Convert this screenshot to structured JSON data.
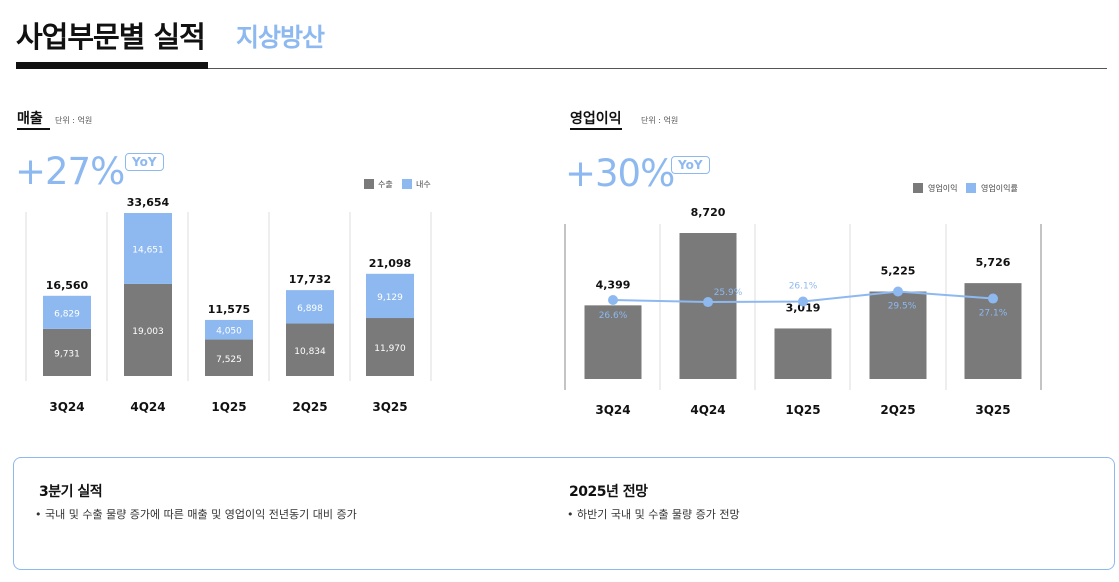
{
  "header": {
    "title": "사업부문별 실적",
    "subtitle": "지상방산"
  },
  "colors": {
    "accent": "#8db9f0",
    "bar_gray": "#7a7a7a",
    "bar_blue": "#8db9f0",
    "line_blue": "#8db9f0"
  },
  "sales": {
    "title": "매출",
    "unit": "단위 : 억원",
    "growth": "+27%",
    "badge": "YoY"
  },
  "op": {
    "title": "영업이익",
    "unit": "단위 : 억원",
    "growth": "+30%",
    "badge": "YoY"
  },
  "chart_data": [
    {
      "type": "bar",
      "stacked": true,
      "title": "매출",
      "categories": [
        "3Q24",
        "4Q24",
        "1Q25",
        "2Q25",
        "3Q25"
      ],
      "series": [
        {
          "name": "수출",
          "values": [
            9731,
            19003,
            7525,
            10834,
            11970
          ],
          "labels": [
            "9,731",
            "19,003",
            "7,525",
            "10,834",
            "11,970"
          ],
          "color": "#7a7a7a"
        },
        {
          "name": "내수",
          "values": [
            6829,
            14651,
            4050,
            6898,
            9129
          ],
          "labels": [
            "6,829",
            "14,651",
            "4,050",
            "6,898",
            "9,129"
          ],
          "color": "#8db9f0"
        }
      ],
      "totals": [
        16560,
        33654,
        11575,
        17732,
        21098
      ],
      "total_labels": [
        "16,560",
        "33,654",
        "11,575",
        "17,732",
        "21,098"
      ],
      "legend": [
        "수출",
        "내수"
      ],
      "legend_position": "top-right",
      "ylim": [
        0,
        35000
      ]
    },
    {
      "type": "bar",
      "title": "영업이익",
      "categories": [
        "3Q24",
        "4Q24",
        "1Q25",
        "2Q25",
        "3Q25"
      ],
      "series": [
        {
          "name": "영업이익",
          "values": [
            4399,
            8720,
            3019,
            5225,
            5726
          ],
          "labels": [
            "4,399",
            "8,720",
            "3,019",
            "5,225",
            "5,726"
          ],
          "color": "#7a7a7a"
        },
        {
          "name": "영업이익률",
          "type": "line",
          "values": [
            26.6,
            25.9,
            26.1,
            29.5,
            27.1
          ],
          "labels": [
            "26.6%",
            "25.9%",
            "26.1%",
            "29.5%",
            "27.1%"
          ],
          "color": "#8db9f0"
        }
      ],
      "legend": [
        "영업이익",
        "영업이익률"
      ],
      "legend_position": "top-right",
      "ylim": [
        0,
        9500
      ]
    }
  ],
  "summary": {
    "left_heading": "3분기 실적",
    "left_bullet": "• 국내 및 수출 물량 증가에 따른 매출 및 영업이익 전년동기 대비 증가",
    "right_heading": "2025년 전망",
    "right_bullet": "• 하반기 국내 및 수출 물량 증가 전망"
  }
}
